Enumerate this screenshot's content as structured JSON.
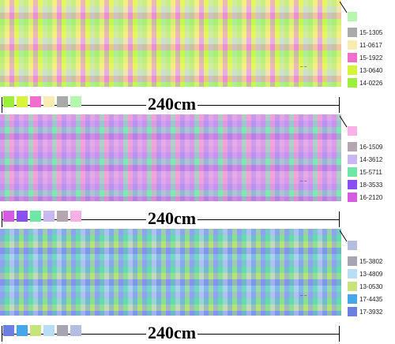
{
  "panels": [
    {
      "name": "panel-1",
      "stripe_colors": [
        "#a8f07a",
        "#f5f07c",
        "#e58fd4",
        "#d9ff3a",
        "#b3ebb5"
      ],
      "row_colors": [
        "#f4ec8c",
        "#eed3f2",
        "#f08fd0",
        "#a7f06a",
        "#d7f07a"
      ],
      "top_swatch": "#b6f7b0",
      "legend": [
        {
          "code": "15-1305",
          "color": "#a9aba9"
        },
        {
          "code": "11-0617",
          "color": "#f8ecb0"
        },
        {
          "code": "15-1922",
          "color": "#f06fcd"
        },
        {
          "code": "13-0640",
          "color": "#d7f33a"
        },
        {
          "code": "14-0226",
          "color": "#9cf03c"
        }
      ],
      "swatches": [
        "#9cf03c",
        "#d7f33a",
        "#f06fcd",
        "#f8ecb0",
        "#a9aba9",
        "#b6f7b0"
      ],
      "dimension": "240cm"
    },
    {
      "name": "panel-2",
      "stripe_colors": [
        "#c390f0",
        "#7ee9b0",
        "#f09ad6",
        "#a78ef2",
        "#d6a5ee"
      ],
      "row_colors": [
        "#f0a6df",
        "#c69af0",
        "#7fe8b3",
        "#c970de",
        "#f3b2e0"
      ],
      "top_swatch": "#f9b0e6",
      "legend": [
        {
          "code": "16-1509",
          "color": "#b5a5b0"
        },
        {
          "code": "14-3612",
          "color": "#c9b7f1"
        },
        {
          "code": "15-5711",
          "color": "#6ee6a6"
        },
        {
          "code": "18-3533",
          "color": "#8a4ff0"
        },
        {
          "code": "16-2120",
          "color": "#d65be3"
        }
      ],
      "swatches": [
        "#d65be3",
        "#8a4ff0",
        "#6ee6a6",
        "#c9b7f1",
        "#b5a5b0",
        "#f9b0e6"
      ],
      "dimension": "240cm"
    },
    {
      "name": "panel-3",
      "stripe_colors": [
        "#8a9af0",
        "#5ee0a8",
        "#c3d4f0",
        "#7aa6e8",
        "#a4e87a"
      ],
      "row_colors": [
        "#9aaaf0",
        "#66d9b0",
        "#c8e07a",
        "#7f88ee",
        "#8ad0e6"
      ],
      "top_swatch": "#b3bde0",
      "legend": [
        {
          "code": "15-3802",
          "color": "#a6a5b1"
        },
        {
          "code": "13-4809",
          "color": "#b8def6"
        },
        {
          "code": "13-0530",
          "color": "#c6e37c"
        },
        {
          "code": "17-4435",
          "color": "#45a7ea"
        },
        {
          "code": "17-3932",
          "color": "#6b7fe0"
        }
      ],
      "swatches": [
        "#6b7fe0",
        "#45a7ea",
        "#c6e37c",
        "#b8def6",
        "#a6a5b1",
        "#b3bde0"
      ],
      "dimension": "240cm"
    }
  ]
}
